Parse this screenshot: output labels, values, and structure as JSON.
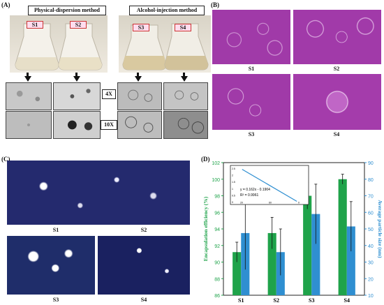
{
  "panels": {
    "A": {
      "tag": "(A)",
      "method_left": "Physical-dispersion method",
      "method_right": "Alcohol-injection method",
      "flasks": [
        "S1",
        "S2",
        "S3",
        "S4"
      ],
      "magnifications": [
        "4X",
        "10X"
      ]
    },
    "B": {
      "tag": "(B)",
      "labels": [
        "S1",
        "S2",
        "S3",
        "S4"
      ]
    },
    "C": {
      "tag": "(C)",
      "labels": [
        "S1",
        "S2",
        "S3",
        "S4"
      ]
    },
    "D": {
      "tag": "(D)",
      "inset_equation": "y = 0.162x - 0.1904",
      "inset_r2": "R² = 0.9961"
    }
  },
  "chart_data": {
    "type": "bar",
    "categories": [
      "S1",
      "S2",
      "S3",
      "S4"
    ],
    "ylabel": "Encapsulation efficiency (%)",
    "y2label": "Average particle size (nm)",
    "ylim": [
      86,
      102
    ],
    "y2lim": [
      10,
      90
    ],
    "yticks": [
      86,
      88,
      90,
      92,
      94,
      96,
      98,
      100,
      102
    ],
    "y2ticks": [
      10,
      20,
      30,
      40,
      50,
      60,
      70,
      80,
      90
    ],
    "series": [
      {
        "values": [
          91.2,
          93.5,
          98.0,
          100.0
        ],
        "err": [
          1.2,
          1.9,
          1.6,
          0.6
        ],
        "color": "#1fa34a",
        "axis": "left"
      },
      {
        "values": [
          47.5,
          36.0,
          59.0,
          51.5
        ],
        "err": [
          22.0,
          14.0,
          18.0,
          15.0
        ],
        "color": "#2f8fd1",
        "axis": "right"
      }
    ],
    "inset": {
      "type": "line",
      "x_ticks": [
        "20",
        "60",
        "0"
      ],
      "y_ticks": [
        "2.5",
        "2",
        "1.5",
        "1",
        "0.5",
        "0"
      ],
      "line": {
        "x1": 0.15,
        "y1": 0.1,
        "x2": 0.85,
        "y2": 0.92
      },
      "color": "#2f8fd1"
    }
  },
  "colors": {
    "green": "#1fa34a",
    "blue": "#2f8fd1",
    "sem_bg": "#a03aa8",
    "tem_bg": "#1e2466"
  }
}
